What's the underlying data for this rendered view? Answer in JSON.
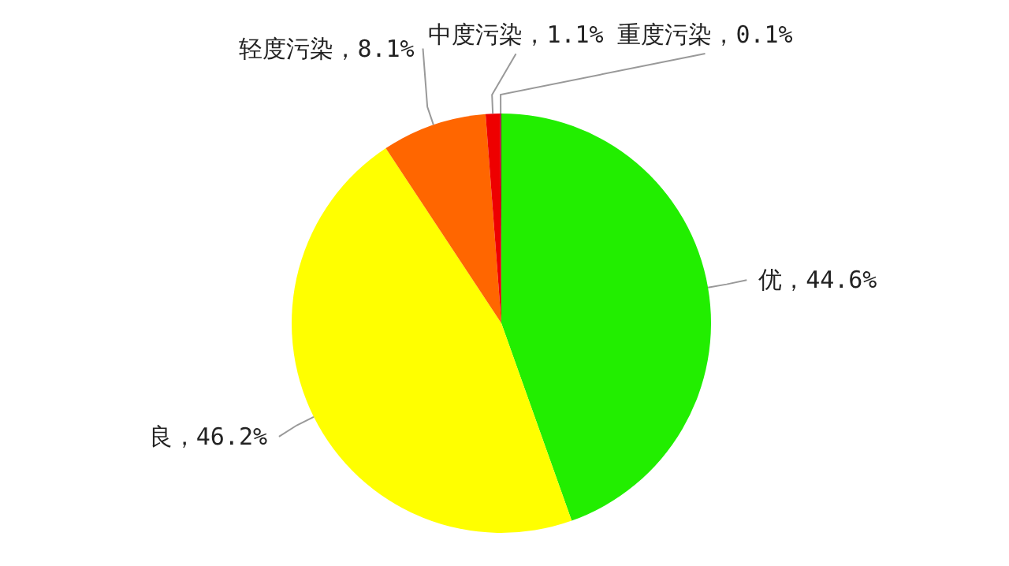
{
  "chart_data": {
    "type": "pie",
    "categories": [
      "优",
      "良",
      "轻度污染",
      "中度污染",
      "重度污染"
    ],
    "values": [
      44.6,
      46.2,
      8.1,
      1.1,
      0.1
    ],
    "value_labels": [
      "44.6%",
      "46.2%",
      "8.1%",
      "1.1%",
      "0.1%"
    ],
    "colors": [
      "#22ee00",
      "#ffff00",
      "#ff6600",
      "#ee0000",
      "#990033"
    ]
  }
}
